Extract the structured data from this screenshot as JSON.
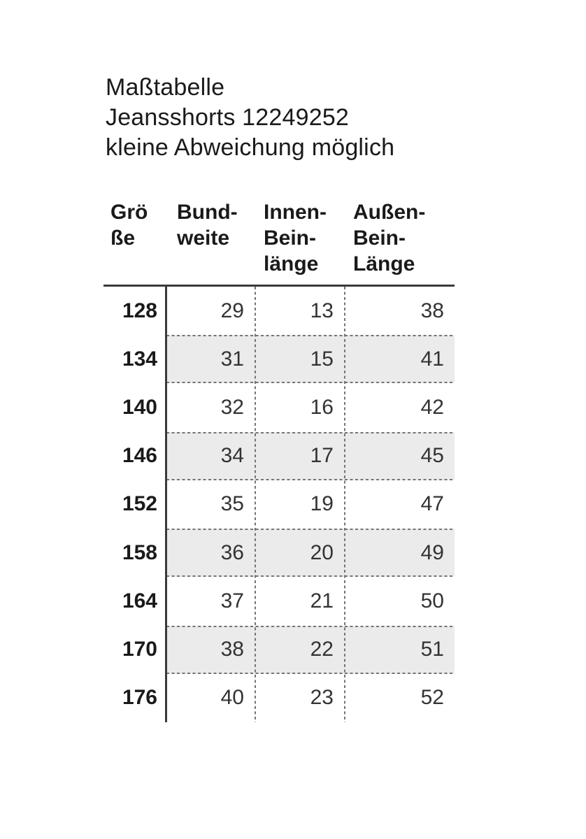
{
  "page": {
    "background": "#ffffff"
  },
  "title": {
    "lines": [
      "Maßtabelle",
      "Jeansshorts 12249252",
      "kleine Abweichung möglich"
    ]
  },
  "table": {
    "columns": [
      {
        "id": "groesse",
        "lines": [
          "Grö",
          "ße"
        ]
      },
      {
        "id": "bundweite",
        "lines": [
          "Bund-",
          "weite"
        ]
      },
      {
        "id": "innenbeinlaenge",
        "lines": [
          "Innen-",
          "Bein-",
          "länge"
        ]
      },
      {
        "id": "aussenbeinlaenge",
        "lines": [
          "Außen-",
          "Bein-",
          "Länge"
        ]
      }
    ],
    "rows": [
      {
        "size": "128",
        "values": [
          "29",
          "13",
          "38"
        ]
      },
      {
        "size": "134",
        "values": [
          "31",
          "15",
          "41"
        ]
      },
      {
        "size": "140",
        "values": [
          "32",
          "16",
          "42"
        ]
      },
      {
        "size": "146",
        "values": [
          "34",
          "17",
          "45"
        ]
      },
      {
        "size": "152",
        "values": [
          "35",
          "19",
          "47"
        ]
      },
      {
        "size": "158",
        "values": [
          "36",
          "20",
          "49"
        ]
      },
      {
        "size": "164",
        "values": [
          "37",
          "21",
          "50"
        ]
      },
      {
        "size": "170",
        "values": [
          "38",
          "22",
          "51"
        ]
      },
      {
        "size": "176",
        "values": [
          "40",
          "23",
          "52"
        ]
      }
    ]
  },
  "colors": {
    "heading_text": "#1a1a1a",
    "value_text": "#333333",
    "stripe_background": "#ebebec",
    "solid_line": "#3a3a3a",
    "dotted_line": "#757575"
  }
}
